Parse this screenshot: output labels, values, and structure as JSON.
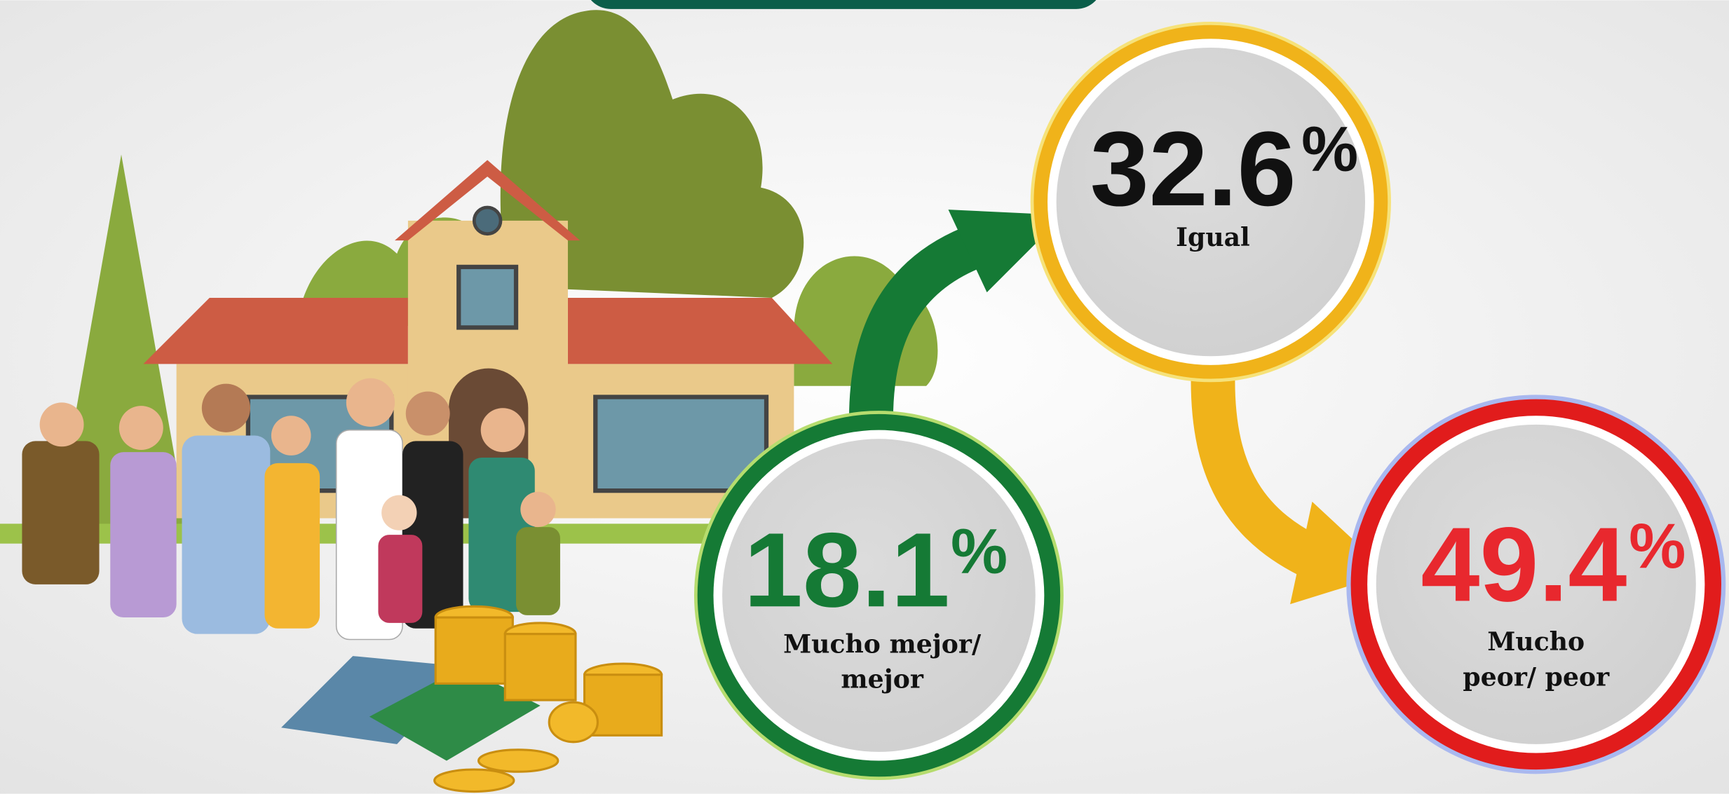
{
  "circles": [
    {
      "value": 32.6,
      "unit": "%",
      "label": [
        "Igual"
      ]
    },
    {
      "value": 18.1,
      "unit": "%",
      "label": [
        "Mucho mejor/",
        "mejor"
      ]
    },
    {
      "value": 49.4,
      "unit": "%",
      "label": [
        "Mucho",
        "peor/ peor"
      ]
    }
  ]
}
